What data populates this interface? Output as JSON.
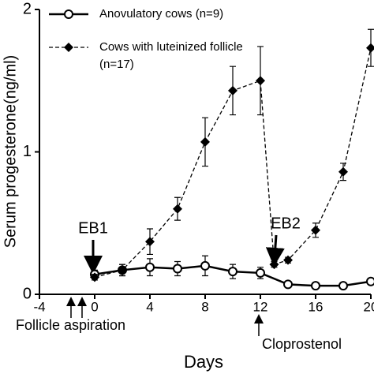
{
  "chart_data": {
    "type": "line",
    "y_label": "Serum progesterone(ng/ml)",
    "x_label": "Days",
    "xlim": [
      -4,
      20
    ],
    "xticks": [
      -4,
      0,
      4,
      8,
      12,
      16,
      20
    ],
    "ylim": [
      0,
      2
    ],
    "yticks": [
      0,
      1,
      2
    ],
    "series": [
      {
        "name": "Anovulatory cows (n=9)",
        "color": "#000000",
        "marker": "circle",
        "dash": false,
        "x": [
          0,
          2,
          4,
          6,
          8,
          10,
          12,
          14,
          16,
          18,
          20
        ],
        "values": [
          0.14,
          0.17,
          0.19,
          0.18,
          0.2,
          0.16,
          0.15,
          0.07,
          0.06,
          0.06,
          0.09
        ],
        "errors": [
          0.03,
          0.04,
          0.06,
          0.05,
          0.07,
          0.05,
          0.04,
          0.02,
          0.01,
          0.01,
          0.02
        ]
      },
      {
        "name": "Cows with luteinized follicle (n=17)",
        "color": "#000000",
        "marker": "diamond",
        "dash": true,
        "x": [
          0,
          2,
          4,
          6,
          8,
          10,
          12,
          13,
          14,
          16,
          18,
          20
        ],
        "values": [
          0.12,
          0.17,
          0.37,
          0.6,
          1.07,
          1.43,
          1.5,
          0.21,
          0.24,
          0.45,
          0.86,
          1.73
        ],
        "errors": [
          0.02,
          0.04,
          0.09,
          0.08,
          0.17,
          0.17,
          0.24,
          0.02,
          0.02,
          0.05,
          0.06,
          0.13
        ]
      }
    ],
    "annotations": [
      "EB1",
      "EB2",
      "Follicle aspiration",
      "Cloprostenol"
    ]
  }
}
